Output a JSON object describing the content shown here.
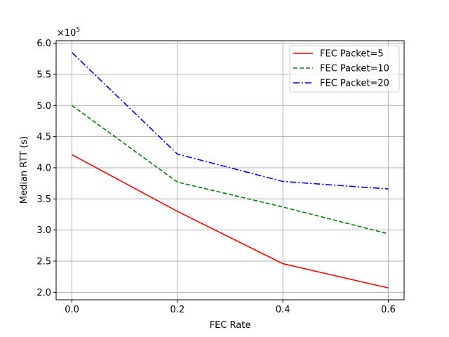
{
  "chart_data": {
    "type": "line",
    "xlabel": "FEC Rate",
    "ylabel": "Median RTT (s)",
    "y_multiplier": "×10",
    "y_multiplier_exponent": "5",
    "x": [
      0.0,
      0.2,
      0.4,
      0.6
    ],
    "xlim": [
      -0.03,
      0.63
    ],
    "ylim": [
      1.88,
      6.04
    ],
    "x_ticks": [
      0.0,
      0.2,
      0.4,
      0.6
    ],
    "x_tick_labels": [
      "0.0",
      "0.2",
      "0.4",
      "0.6"
    ],
    "y_ticks": [
      2.0,
      2.5,
      3.0,
      3.5,
      4.0,
      4.5,
      5.0,
      5.5,
      6.0
    ],
    "y_tick_labels": [
      "2.0",
      "2.5",
      "3.0",
      "3.5",
      "4.0",
      "4.5",
      "5.0",
      "5.5",
      "6.0"
    ],
    "grid": true,
    "legend_position": "top-right",
    "series": [
      {
        "name": "FEC Packet=5",
        "values": [
          4.21,
          3.3,
          2.46,
          2.07
        ],
        "color": "#ff0000",
        "style": "solid"
      },
      {
        "name": "FEC Packet=10",
        "values": [
          5.0,
          3.77,
          3.37,
          2.94
        ],
        "color": "#008000",
        "style": "dashed"
      },
      {
        "name": "FEC Packet=20",
        "values": [
          5.85,
          4.22,
          3.78,
          3.66
        ],
        "color": "#0000ff",
        "style": "dashdot"
      }
    ]
  }
}
